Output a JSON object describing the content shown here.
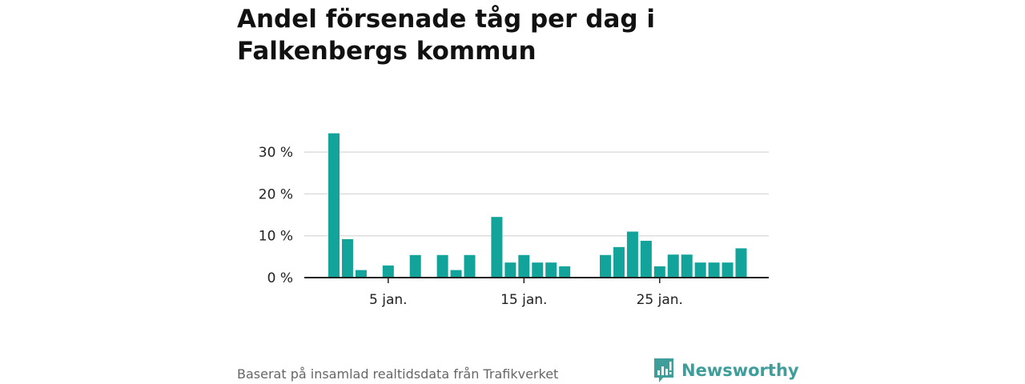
{
  "title": "Andel försenade tåg per dag i Falkenbergs kommun",
  "source": "Baserat på insamlad realtidsdata från Trafikverket",
  "brand": {
    "name": "Newsworthy",
    "icon": "newsworthy-logo-icon",
    "color": "#3f9e9a"
  },
  "colors": {
    "bar": "#12a39a",
    "grid": "#dddddd",
    "axis": "#222222",
    "text": "#222222"
  },
  "chart_data": {
    "type": "bar",
    "title": "Andel försenade tåg per dag i Falkenbergs kommun",
    "xlabel": "",
    "ylabel": "",
    "x": [
      1,
      2,
      3,
      4,
      5,
      6,
      7,
      8,
      9,
      10,
      11,
      12,
      13,
      14,
      15,
      16,
      17,
      18,
      19,
      20,
      21,
      22,
      23,
      24,
      25,
      26,
      27,
      28,
      29,
      30,
      31
    ],
    "values": [
      34.5,
      9.2,
      1.8,
      0,
      2.9,
      0,
      5.4,
      0,
      5.4,
      1.8,
      5.4,
      0,
      14.5,
      3.6,
      5.4,
      3.6,
      3.6,
      2.7,
      0,
      0,
      5.4,
      7.3,
      11.0,
      8.8,
      2.7,
      5.5,
      5.5,
      3.6,
      3.6,
      3.6,
      7.0
    ],
    "ylim": [
      0,
      35
    ],
    "y_ticks": [
      0,
      10,
      20,
      30
    ],
    "y_tick_labels": [
      "0 %",
      "10 %",
      "20 %",
      "30 %"
    ],
    "x_ticks": [
      5,
      15,
      25
    ],
    "x_tick_labels": [
      "5 jan.",
      "15 jan.",
      "25 jan."
    ],
    "grid": true
  }
}
